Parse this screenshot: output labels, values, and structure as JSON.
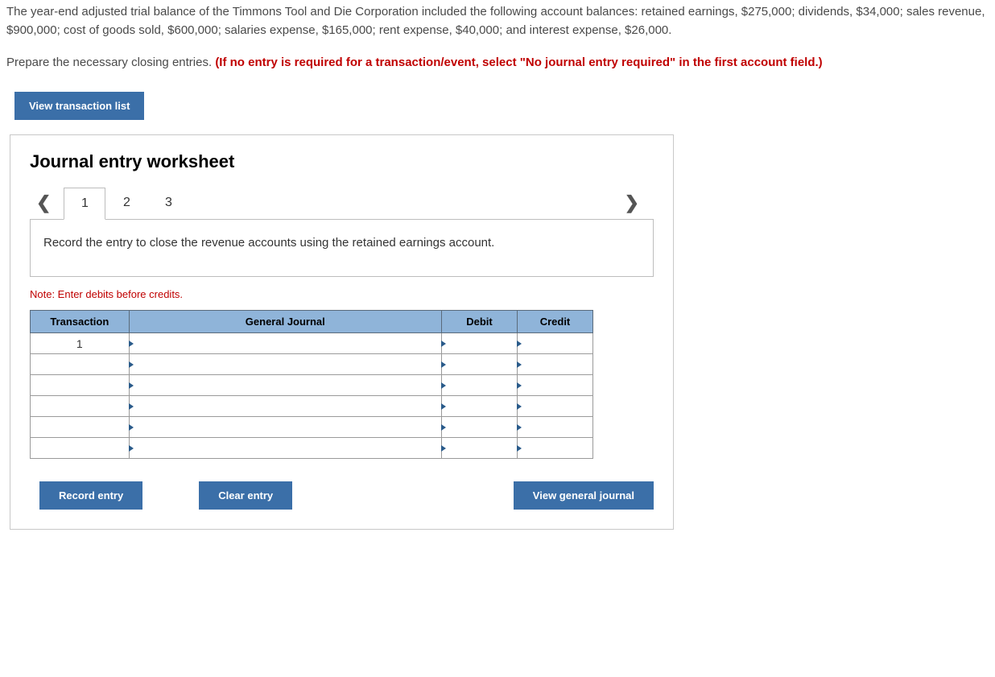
{
  "problem": {
    "paragraph1": "The year-end adjusted trial balance of the Timmons Tool and Die Corporation included the following account balances: retained earnings, $275,000; dividends, $34,000; sales revenue, $900,000; cost of goods sold, $600,000; salaries expense, $165,000; rent expense, $40,000; and interest expense, $26,000.",
    "instruction_plain": "Prepare the necessary closing entries. ",
    "instruction_bold": "(If no entry is required for a transaction/event, select \"No journal entry required\" in the first account field.)"
  },
  "buttons": {
    "view_transaction_list": "View transaction list",
    "record_entry": "Record entry",
    "clear_entry": "Clear entry",
    "view_general_journal": "View general journal"
  },
  "worksheet": {
    "title": "Journal entry worksheet",
    "tabs": [
      "1",
      "2",
      "3"
    ],
    "active_tab": "1",
    "prompt": "Record the entry to close the revenue accounts using the retained earnings account.",
    "note": "Note: Enter debits before credits.",
    "table": {
      "headers": {
        "transaction": "Transaction",
        "general_journal": "General Journal",
        "debit": "Debit",
        "credit": "Credit"
      },
      "rows": [
        {
          "transaction": "1",
          "general_journal": "",
          "debit": "",
          "credit": ""
        },
        {
          "transaction": "",
          "general_journal": "",
          "debit": "",
          "credit": ""
        },
        {
          "transaction": "",
          "general_journal": "",
          "debit": "",
          "credit": ""
        },
        {
          "transaction": "",
          "general_journal": "",
          "debit": "",
          "credit": ""
        },
        {
          "transaction": "",
          "general_journal": "",
          "debit": "",
          "credit": ""
        },
        {
          "transaction": "",
          "general_journal": "",
          "debit": "",
          "credit": ""
        }
      ]
    }
  },
  "colors": {
    "button_bg": "#3b6fa8",
    "table_header_bg": "#8fb4d9",
    "accent_red": "#c00000"
  }
}
